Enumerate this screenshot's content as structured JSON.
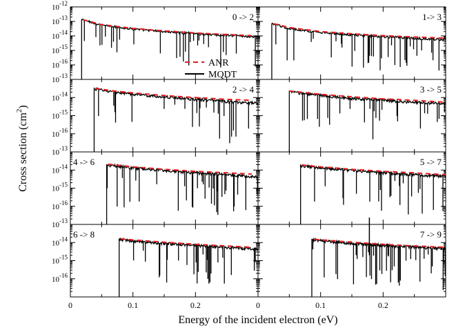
{
  "figure": {
    "ylabel": "Cross section (cm",
    "ylabel_sup": "2",
    "ylabel_close": ")",
    "xlabel": "Energy of the incident electron (eV)",
    "legend": [
      {
        "label": "ANR",
        "color": "#e41a1c",
        "dashed": true
      },
      {
        "label": "MQDT",
        "color": "#000000",
        "dashed": false
      }
    ]
  },
  "chart_data": [
    {
      "type": "line",
      "panel": "0 -> 2",
      "onset": 0.018,
      "ylim": [
        1e-17,
        1e-12
      ],
      "xlim": [
        0,
        0.3
      ],
      "scale_y": "log",
      "yticks": [
        "10-12",
        "10-13",
        "10-14",
        "10-15",
        "10-16"
      ],
      "xticks": [
        "0",
        "0.1",
        "0.2"
      ],
      "series": [
        {
          "name": "ANR",
          "x": [
            0.02,
            0.05,
            0.1,
            0.15,
            0.2,
            0.25,
            0.29
          ],
          "y": [
            1.3e-13,
            6e-14,
            3.3e-14,
            2.2e-14,
            1.6e-14,
            1.25e-14,
            1.05e-14
          ]
        },
        {
          "name": "MQDT",
          "x": [
            0.02,
            0.05,
            0.1,
            0.15,
            0.2,
            0.25,
            0.29
          ],
          "y": [
            1.3e-13,
            5.5e-14,
            3e-14,
            2e-14,
            1.4e-14,
            1.1e-14,
            9e-15
          ]
        }
      ]
    },
    {
      "type": "line",
      "panel": "1-> 3",
      "onset": 0.022,
      "ylim": [
        1e-17,
        1e-12
      ],
      "xlim": [
        0,
        0.3
      ],
      "scale_y": "log",
      "yticks": [],
      "xticks": [],
      "series": [
        {
          "name": "ANR",
          "x": [
            0.025,
            0.05,
            0.1,
            0.15,
            0.2,
            0.25,
            0.3
          ],
          "y": [
            7e-14,
            3.8e-14,
            2e-14,
            1.4e-14,
            1.05e-14,
            8.5e-15,
            7e-15
          ]
        },
        {
          "name": "MQDT",
          "x": [
            0.025,
            0.05,
            0.1,
            0.15,
            0.2,
            0.25,
            0.3
          ],
          "y": [
            6.5e-14,
            3.2e-14,
            1.7e-14,
            1.2e-14,
            9e-15,
            7e-15,
            5.5e-15
          ]
        }
      ]
    },
    {
      "type": "line",
      "panel": "2 -> 4",
      "onset": 0.038,
      "ylim": [
        1e-17,
        1e-13
      ],
      "xlim": [
        0,
        0.3
      ],
      "scale_y": "log",
      "yticks": [
        "10-13",
        "10-14",
        "10-15",
        "10-16"
      ],
      "xticks": [],
      "series": [
        {
          "name": "ANR",
          "x": [
            0.04,
            0.07,
            0.1,
            0.15,
            0.2,
            0.25,
            0.29
          ],
          "y": [
            3.2e-14,
            2.3e-14,
            1.8e-14,
            1.3e-14,
            1e-14,
            8e-15,
            7e-15
          ]
        },
        {
          "name": "MQDT",
          "x": [
            0.04,
            0.07,
            0.1,
            0.15,
            0.2,
            0.25,
            0.29
          ],
          "y": [
            3e-14,
            2e-14,
            1.5e-14,
            1.1e-14,
            8e-15,
            6e-15,
            5e-15
          ]
        }
      ]
    },
    {
      "type": "line",
      "panel": "3 -> 5",
      "onset": 0.05,
      "ylim": [
        1e-17,
        1e-13
      ],
      "xlim": [
        0,
        0.3
      ],
      "scale_y": "log",
      "yticks": [],
      "xticks": [],
      "series": [
        {
          "name": "ANR",
          "x": [
            0.05,
            0.08,
            0.1,
            0.15,
            0.2,
            0.25,
            0.3
          ],
          "y": [
            2.3e-14,
            1.8e-14,
            1.5e-14,
            1.1e-14,
            8.5e-15,
            7e-15,
            5.5e-15
          ]
        },
        {
          "name": "MQDT",
          "x": [
            0.05,
            0.08,
            0.1,
            0.15,
            0.2,
            0.25,
            0.3
          ],
          "y": [
            2.1e-14,
            1.6e-14,
            1.3e-14,
            9e-15,
            7e-15,
            5.5e-15,
            4.5e-15
          ]
        }
      ]
    },
    {
      "type": "line",
      "panel": "4 -> 6",
      "onset": 0.058,
      "ylim": [
        1e-17,
        1e-13
      ],
      "xlim": [
        0,
        0.3
      ],
      "scale_y": "log",
      "yticks": [
        "10-13",
        "10-14",
        "10-15",
        "10-16"
      ],
      "xticks": [],
      "series": [
        {
          "name": "ANR",
          "x": [
            0.06,
            0.1,
            0.15,
            0.2,
            0.25,
            0.29
          ],
          "y": [
            2.1e-14,
            1.5e-14,
            1.1e-14,
            8.5e-15,
            7e-15,
            6e-15
          ]
        },
        {
          "name": "MQDT",
          "x": [
            0.06,
            0.1,
            0.15,
            0.2,
            0.25,
            0.29
          ],
          "y": [
            1.9e-14,
            1.3e-14,
            9.5e-15,
            7e-15,
            5.5e-15,
            4.5e-15
          ]
        }
      ]
    },
    {
      "type": "line",
      "panel": "5 -> 7",
      "onset": 0.068,
      "ylim": [
        1e-17,
        1e-13
      ],
      "xlim": [
        0,
        0.3
      ],
      "scale_y": "log",
      "yticks": [],
      "xticks": [],
      "series": [
        {
          "name": "ANR",
          "x": [
            0.07,
            0.1,
            0.15,
            0.2,
            0.25,
            0.3
          ],
          "y": [
            1.9e-14,
            1.5e-14,
            1.1e-14,
            8.5e-15,
            7e-15,
            5.5e-15
          ]
        },
        {
          "name": "MQDT",
          "x": [
            0.07,
            0.1,
            0.15,
            0.2,
            0.25,
            0.3
          ],
          "y": [
            1.7e-14,
            1.3e-14,
            9.5e-15,
            7e-15,
            5.5e-15,
            4.5e-15
          ]
        }
      ]
    },
    {
      "type": "line",
      "panel": "6 -> 8",
      "onset": 0.078,
      "ylim": [
        1e-17,
        1e-13
      ],
      "xlim": [
        0,
        0.3
      ],
      "scale_y": "log",
      "yticks": [
        "10-13",
        "10-14",
        "10-15",
        "10-16"
      ],
      "xticks": [
        "0",
        "0.1",
        "0.2"
      ],
      "series": [
        {
          "name": "ANR",
          "x": [
            0.08,
            0.1,
            0.15,
            0.2,
            0.25,
            0.29
          ],
          "y": [
            1.6e-14,
            1.4e-14,
            1.05e-14,
            8e-15,
            6.5e-15,
            5.5e-15
          ]
        },
        {
          "name": "MQDT",
          "x": [
            0.08,
            0.1,
            0.15,
            0.2,
            0.25,
            0.29
          ],
          "y": [
            1.5e-14,
            1.2e-14,
            9e-15,
            7e-15,
            5.5e-15,
            4.5e-15
          ]
        }
      ]
    },
    {
      "type": "line",
      "panel": "7 -> 9",
      "onset": 0.086,
      "ylim": [
        1e-17,
        1e-13
      ],
      "xlim": [
        0,
        0.3
      ],
      "scale_y": "log",
      "yticks": [],
      "xticks": [
        "0",
        "0.1",
        "0.2"
      ],
      "series": [
        {
          "name": "ANR",
          "x": [
            0.09,
            0.12,
            0.15,
            0.2,
            0.25,
            0.3
          ],
          "y": [
            1.5e-14,
            1.25e-14,
            1.05e-14,
            8e-15,
            6.5e-15,
            5.5e-15
          ]
        },
        {
          "name": "MQDT",
          "x": [
            0.09,
            0.12,
            0.15,
            0.2,
            0.25,
            0.3
          ],
          "y": [
            1.4e-14,
            1.1e-14,
            9e-15,
            7e-15,
            5.5e-15,
            4.5e-15
          ]
        }
      ]
    }
  ]
}
